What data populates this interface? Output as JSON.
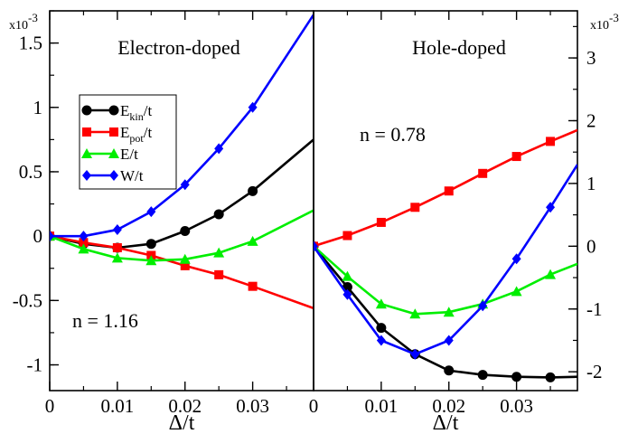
{
  "chart_data": [
    {
      "type": "line",
      "panel": "left",
      "title": "Electron-doped",
      "annotation": "n = 1.16",
      "xlabel": "Δ/t",
      "ylabel_multiplier": "x10",
      "ylabel_multiplier_exp": "-3",
      "xlim": [
        0,
        0.039
      ],
      "ylim": [
        -1.2,
        1.75
      ],
      "xticks": [
        0,
        0.01,
        0.02,
        0.03
      ],
      "xtick_labels": [
        "0",
        "0.01",
        "0.02",
        "0.03"
      ],
      "yticks": [
        -1,
        -0.5,
        0,
        0.5,
        1,
        1.5
      ],
      "ytick_labels": [
        "-1",
        "-0.5",
        "0",
        "0.5",
        "1",
        "1.5"
      ],
      "legend_position": "upper-left",
      "series": [
        {
          "name": "E_kin/t",
          "label_main": "E",
          "label_sub": "kin",
          "label_rest": "/t",
          "color": "#000000",
          "marker": "circle",
          "x": [
            0,
            0.005,
            0.01,
            0.015,
            0.02,
            0.025,
            0.03,
            0.039
          ],
          "y": [
            0,
            -0.06,
            -0.09,
            -0.06,
            0.04,
            0.17,
            0.35,
            0.75
          ],
          "markers_upto": 0.03
        },
        {
          "name": "E_pot/t",
          "label_main": "E",
          "label_sub": "pot",
          "label_rest": "/t",
          "color": "#ff0000",
          "marker": "square",
          "x": [
            0,
            0.005,
            0.01,
            0.015,
            0.02,
            0.025,
            0.03,
            0.039
          ],
          "y": [
            0,
            -0.05,
            -0.09,
            -0.15,
            -0.23,
            -0.3,
            -0.39,
            -0.56
          ],
          "markers_upto": 0.03
        },
        {
          "name": "E/t",
          "label_main": "E/t",
          "label_sub": "",
          "label_rest": "",
          "color": "#00ee00",
          "marker": "triangle",
          "x": [
            0,
            0.005,
            0.01,
            0.015,
            0.02,
            0.025,
            0.03,
            0.039
          ],
          "y": [
            0,
            -0.1,
            -0.17,
            -0.19,
            -0.18,
            -0.13,
            -0.04,
            0.2
          ],
          "markers_upto": 0.03
        },
        {
          "name": "W/t",
          "label_main": "W/t",
          "label_sub": "",
          "label_rest": "",
          "color": "#0000ff",
          "marker": "diamond",
          "x": [
            0,
            0.005,
            0.01,
            0.015,
            0.02,
            0.025,
            0.03,
            0.039
          ],
          "y": [
            0,
            0.0,
            0.05,
            0.19,
            0.4,
            0.68,
            1.0,
            1.72
          ],
          "markers_upto": 0.03
        }
      ]
    },
    {
      "type": "line",
      "panel": "right",
      "title": "Hole-doped",
      "annotation": "n = 0.78",
      "xlabel": "Δ/t",
      "ylabel_multiplier": "x10",
      "ylabel_multiplier_exp": "-3",
      "xlim": [
        0,
        0.039
      ],
      "ylim": [
        -2.3,
        3.75
      ],
      "xticks": [
        0,
        0.01,
        0.02,
        0.03
      ],
      "xtick_labels": [
        "0",
        "0.01",
        "0.02",
        "0.03"
      ],
      "yticks": [
        -2,
        -1,
        0,
        1,
        2,
        3
      ],
      "ytick_labels": [
        "-2",
        "-1",
        "0",
        "1",
        "2",
        "3"
      ],
      "series": [
        {
          "name": "E_kin/t",
          "color": "#000000",
          "marker": "circle",
          "x": [
            0,
            0.005,
            0.01,
            0.015,
            0.02,
            0.025,
            0.03,
            0.035,
            0.039
          ],
          "y": [
            0,
            -0.65,
            -1.3,
            -1.72,
            -1.98,
            -2.05,
            -2.08,
            -2.09,
            -2.08
          ],
          "markers_upto": 0.035
        },
        {
          "name": "E_pot/t",
          "color": "#ff0000",
          "marker": "square",
          "x": [
            0,
            0.005,
            0.01,
            0.015,
            0.02,
            0.025,
            0.03,
            0.035,
            0.039
          ],
          "y": [
            0,
            0.17,
            0.38,
            0.62,
            0.88,
            1.16,
            1.43,
            1.67,
            1.85
          ],
          "markers_upto": 0.035
        },
        {
          "name": "E/t",
          "color": "#00ee00",
          "marker": "triangle",
          "x": [
            0,
            0.005,
            0.01,
            0.015,
            0.02,
            0.025,
            0.03,
            0.035,
            0.039
          ],
          "y": [
            0,
            -0.48,
            -0.92,
            -1.08,
            -1.05,
            -0.92,
            -0.72,
            -0.45,
            -0.28
          ],
          "markers_upto": 0.035
        },
        {
          "name": "W/t",
          "color": "#0000ff",
          "marker": "diamond",
          "x": [
            0,
            0.005,
            0.01,
            0.015,
            0.02,
            0.025,
            0.03,
            0.035,
            0.039
          ],
          "y": [
            0,
            -0.77,
            -1.5,
            -1.72,
            -1.5,
            -0.95,
            -0.2,
            0.62,
            1.3
          ],
          "markers_upto": 0.035
        }
      ]
    }
  ]
}
